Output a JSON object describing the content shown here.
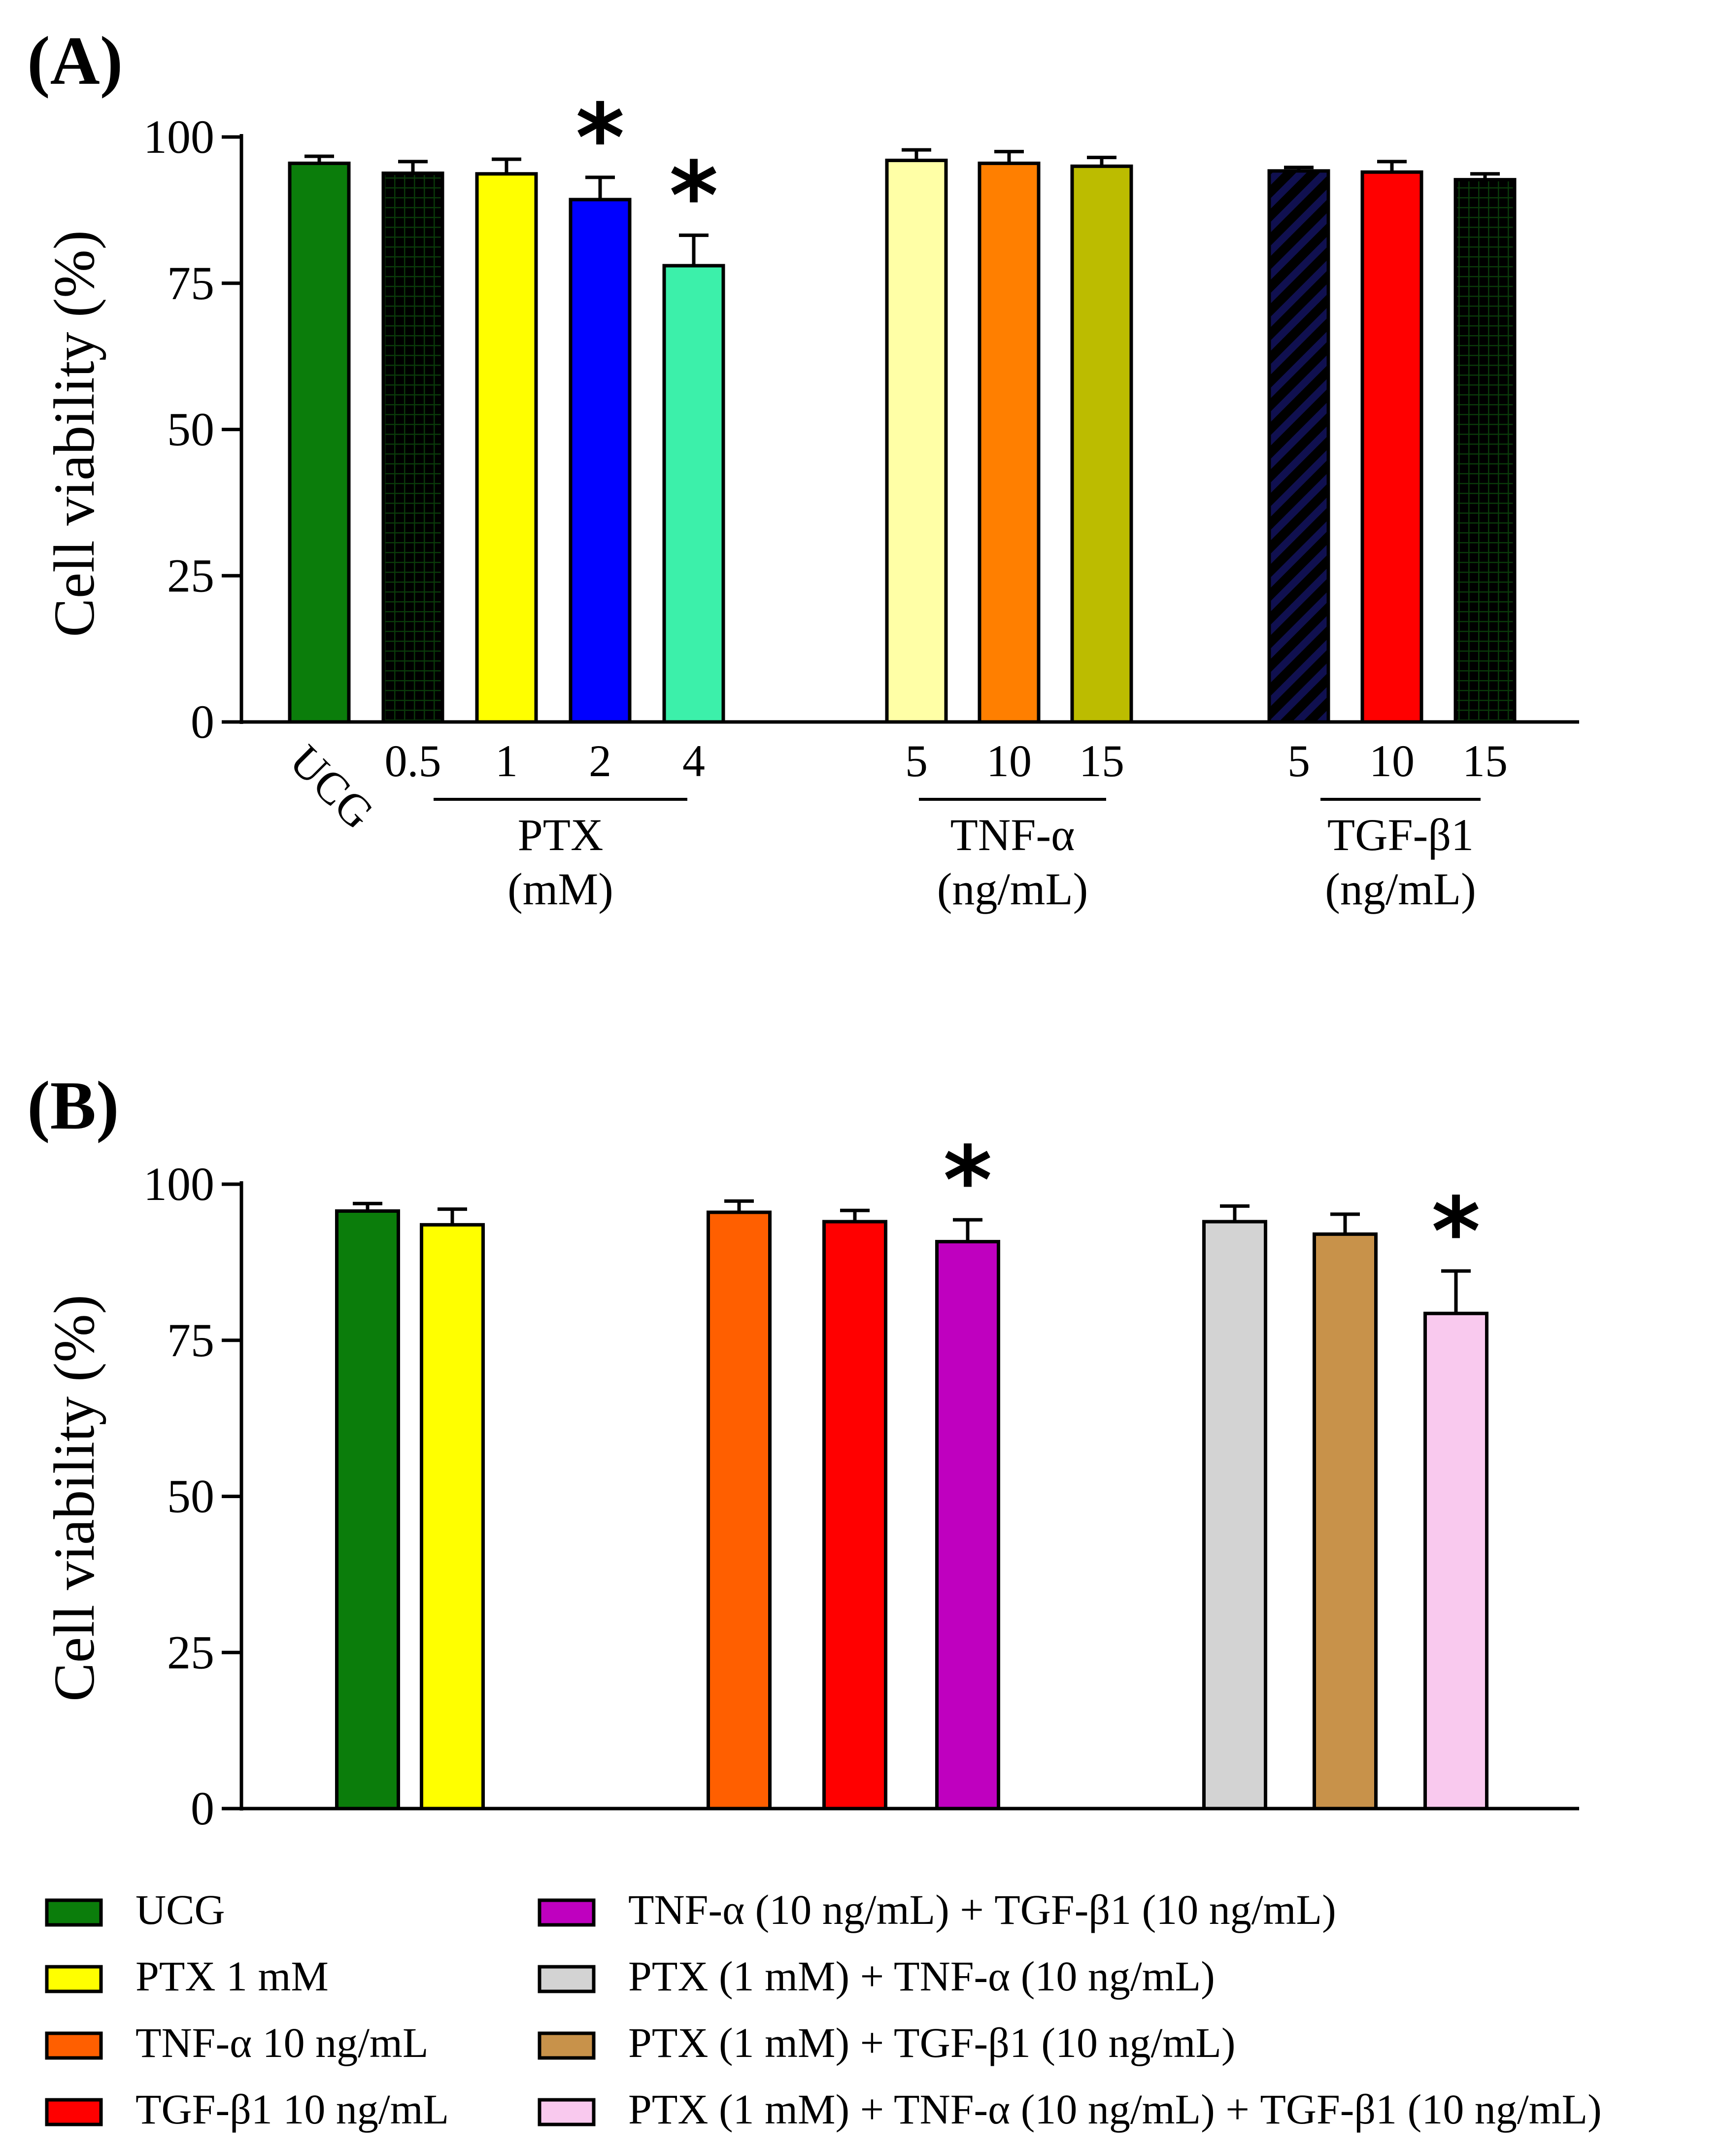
{
  "chart_data": [
    {
      "type": "bar",
      "panel_label": "(A)",
      "ylabel": "Cell viability (%)",
      "ylim": [
        0,
        100
      ],
      "yticks": [
        "0",
        "25",
        "50",
        "75",
        "100"
      ],
      "grid": false,
      "categories": [
        "UCG",
        "0.5",
        "1",
        "2",
        "4",
        "5",
        "10",
        "15",
        "5",
        "10",
        "15"
      ],
      "values": [
        95.5,
        93.8,
        93.7,
        89.3,
        78.0,
        96.0,
        95.5,
        95.0,
        94.2,
        94.0,
        92.7
      ],
      "errors": [
        1.2,
        2.0,
        2.5,
        3.8,
        5.2,
        1.8,
        2.0,
        1.5,
        0.6,
        1.8,
        1.0
      ],
      "colors": [
        "#0b7d0b",
        "#22e41d",
        "#ffff00",
        "#0000ff",
        "#3cf0aa",
        "#ffffa6",
        "#ff7f00",
        "#bcbc00",
        "#ffffa6",
        "#ff0000",
        "#3cf0aa"
      ],
      "patterns": [
        "",
        "grid-dark",
        "",
        "",
        "",
        "",
        "",
        "",
        "diag-navy",
        "",
        "grid-dark"
      ],
      "significant": [
        false,
        false,
        false,
        true,
        true,
        false,
        false,
        false,
        false,
        false,
        false
      ],
      "significance_marker": "*",
      "groups": [
        {
          "label": "PTX",
          "unit": "(mM)"
        },
        {
          "label": "TNF-α",
          "unit": "(ng/mL)"
        },
        {
          "label": "TGF-β1",
          "unit": "(ng/mL)"
        }
      ]
    },
    {
      "type": "bar",
      "panel_label": "(B)",
      "ylabel": "Cell viability (%)",
      "ylim": [
        0,
        100
      ],
      "yticks": [
        "0",
        "25",
        "50",
        "75",
        "100"
      ],
      "grid": false,
      "categories": [
        "UCG",
        "PTX 1 mM",
        "TNF-α 10 ng/mL",
        "TGF-β1 10 ng/mL",
        "TNF-α (10 ng/mL) + TGF-β1 (10 ng/mL)",
        "PTX (1 mM) + TNF-α (10 ng/mL)",
        "PTX (1 mM) + TGF-β1 (10 ng/mL)",
        "PTX (1 mM) + TNF-α (10 ng/mL) + TGF-β1 (10 ng/mL)"
      ],
      "values": [
        95.7,
        93.5,
        95.5,
        94.0,
        90.8,
        94.0,
        92.0,
        79.3
      ],
      "errors": [
        1.2,
        2.5,
        1.8,
        1.8,
        3.5,
        2.5,
        3.2,
        6.8
      ],
      "colors": [
        "#0b7d0b",
        "#ffff00",
        "#ff5f00",
        "#ff0000",
        "#bf00bf",
        "#d3d3d3",
        "#c8924a",
        "#f9c9ee"
      ],
      "significant": [
        false,
        false,
        false,
        false,
        true,
        false,
        false,
        true
      ],
      "significance_marker": "*",
      "legend": [
        "UCG",
        "PTX 1 mM",
        "TNF-α 10 ng/mL",
        "TGF-β1 10 ng/mL",
        "TNF-α (10 ng/mL) + TGF-β1 (10 ng/mL)",
        "PTX (1 mM) + TNF-α (10 ng/mL)",
        "PTX (1 mM) + TGF-β1 (10 ng/mL)",
        "PTX (1 mM) + TNF-α (10 ng/mL) + TGF-β1 (10 ng/mL)"
      ],
      "legend_position": "bottom"
    }
  ]
}
